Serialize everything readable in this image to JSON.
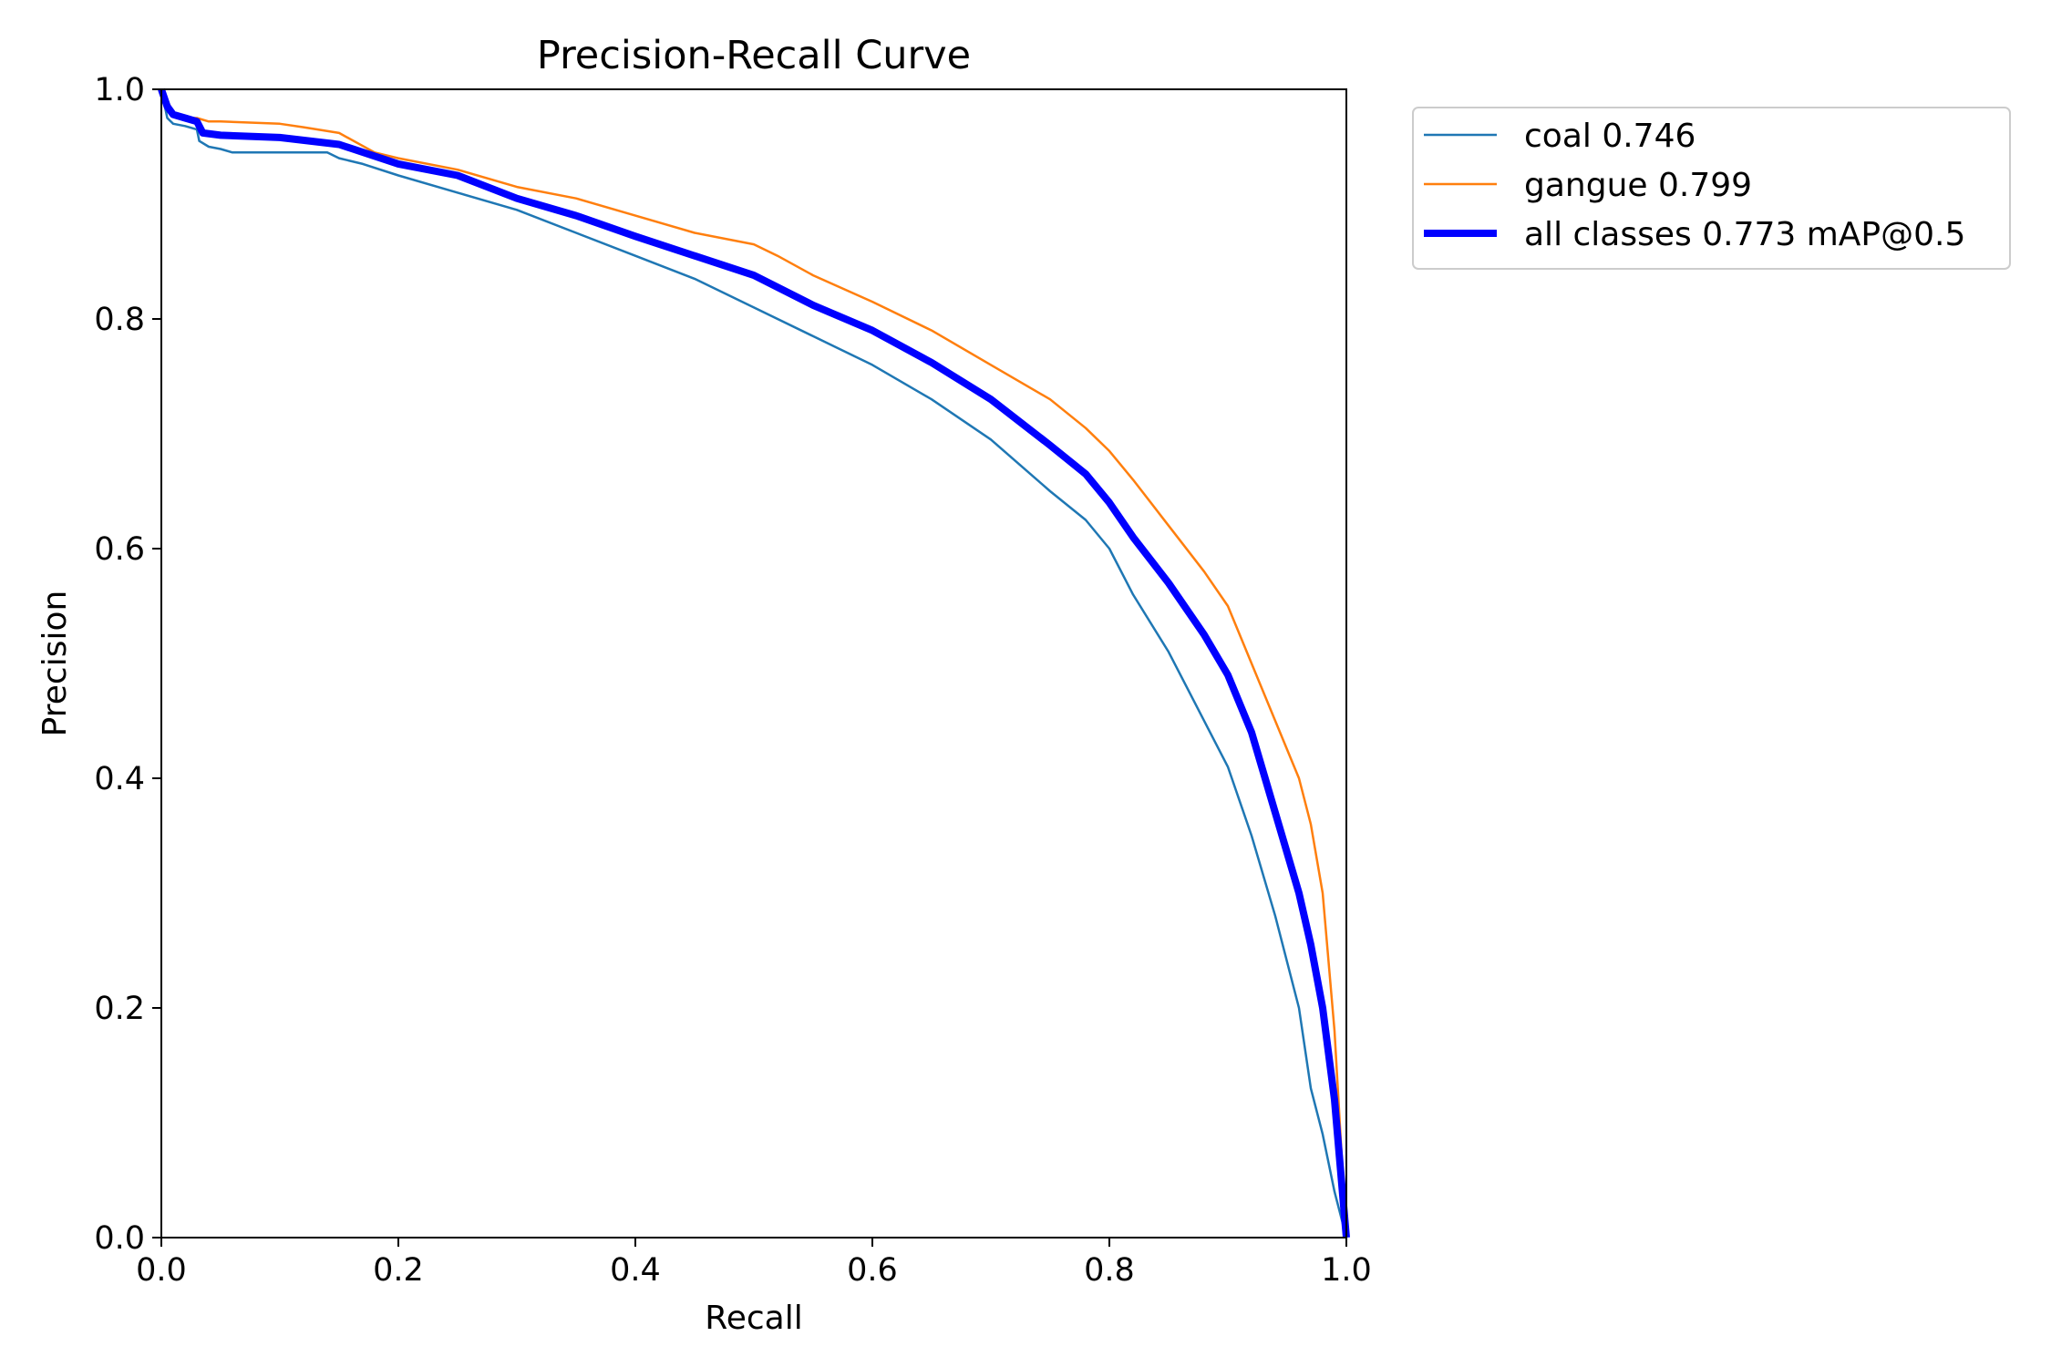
{
  "chart_data": {
    "type": "line",
    "title": "Precision-Recall Curve",
    "xlabel": "Recall",
    "ylabel": "Precision",
    "xlim": [
      0.0,
      1.0
    ],
    "ylim": [
      0.0,
      1.0
    ],
    "x_ticks": [
      "0.0",
      "0.2",
      "0.4",
      "0.6",
      "0.8",
      "1.0"
    ],
    "y_ticks": [
      "0.0",
      "0.2",
      "0.4",
      "0.6",
      "0.8",
      "1.0"
    ],
    "grid": false,
    "legend_position": "outside-top-right",
    "series": [
      {
        "name": "coal 0.746",
        "color": "#1f77b4",
        "line_weight": "thin",
        "x": [
          0.0,
          0.005,
          0.01,
          0.02,
          0.03,
          0.032,
          0.04,
          0.05,
          0.06,
          0.1,
          0.14,
          0.15,
          0.17,
          0.2,
          0.25,
          0.3,
          0.35,
          0.4,
          0.45,
          0.5,
          0.55,
          0.6,
          0.65,
          0.7,
          0.75,
          0.78,
          0.8,
          0.82,
          0.85,
          0.87,
          0.9,
          0.92,
          0.94,
          0.96,
          0.97,
          0.98,
          0.99,
          1.0
        ],
        "y": [
          1.0,
          0.975,
          0.97,
          0.968,
          0.965,
          0.955,
          0.95,
          0.948,
          0.945,
          0.945,
          0.945,
          0.94,
          0.935,
          0.925,
          0.91,
          0.895,
          0.875,
          0.855,
          0.835,
          0.81,
          0.785,
          0.76,
          0.73,
          0.695,
          0.65,
          0.625,
          0.6,
          0.56,
          0.51,
          0.47,
          0.41,
          0.35,
          0.28,
          0.2,
          0.13,
          0.09,
          0.04,
          0.0
        ]
      },
      {
        "name": "gangue 0.799",
        "color": "#ff7f0e",
        "line_weight": "thin",
        "x": [
          0.0,
          0.005,
          0.01,
          0.02,
          0.03,
          0.04,
          0.05,
          0.1,
          0.12,
          0.15,
          0.18,
          0.2,
          0.25,
          0.3,
          0.35,
          0.4,
          0.45,
          0.5,
          0.52,
          0.55,
          0.6,
          0.65,
          0.7,
          0.75,
          0.78,
          0.8,
          0.82,
          0.85,
          0.88,
          0.9,
          0.92,
          0.94,
          0.96,
          0.97,
          0.98,
          0.99,
          1.0
        ],
        "y": [
          1.0,
          0.99,
          0.98,
          0.975,
          0.975,
          0.972,
          0.972,
          0.97,
          0.967,
          0.962,
          0.945,
          0.94,
          0.93,
          0.915,
          0.905,
          0.89,
          0.875,
          0.865,
          0.855,
          0.838,
          0.815,
          0.79,
          0.76,
          0.73,
          0.705,
          0.685,
          0.66,
          0.62,
          0.58,
          0.55,
          0.5,
          0.45,
          0.4,
          0.36,
          0.3,
          0.18,
          0.0
        ]
      },
      {
        "name": "all classes 0.773 mAP@0.5",
        "color": "#0000ff",
        "line_weight": "thick",
        "x": [
          0.0,
          0.005,
          0.01,
          0.02,
          0.03,
          0.035,
          0.05,
          0.1,
          0.15,
          0.2,
          0.25,
          0.3,
          0.35,
          0.4,
          0.45,
          0.5,
          0.55,
          0.6,
          0.65,
          0.7,
          0.75,
          0.78,
          0.8,
          0.82,
          0.85,
          0.88,
          0.9,
          0.92,
          0.94,
          0.96,
          0.97,
          0.98,
          0.99,
          1.0
        ],
        "y": [
          1.0,
          0.985,
          0.978,
          0.975,
          0.972,
          0.962,
          0.96,
          0.958,
          0.952,
          0.935,
          0.925,
          0.905,
          0.89,
          0.872,
          0.855,
          0.838,
          0.812,
          0.79,
          0.762,
          0.73,
          0.69,
          0.665,
          0.64,
          0.61,
          0.57,
          0.525,
          0.49,
          0.44,
          0.37,
          0.3,
          0.255,
          0.2,
          0.12,
          0.0
        ]
      }
    ]
  }
}
